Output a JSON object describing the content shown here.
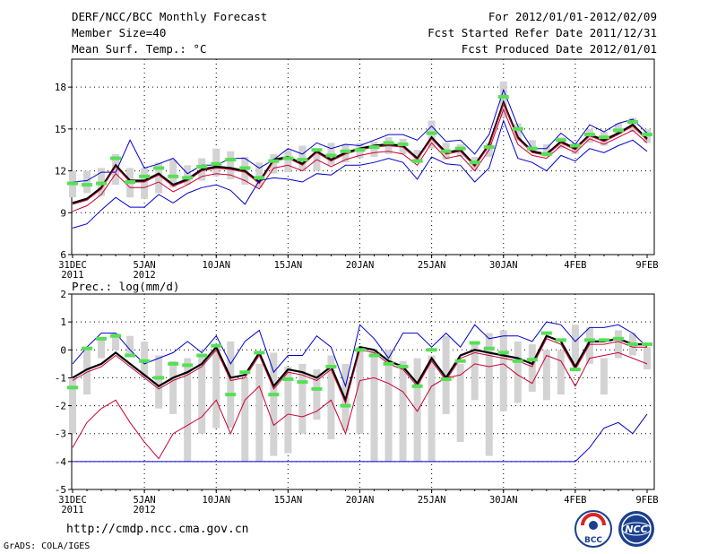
{
  "header": {
    "title_line1": "DERF/NCC/BCC Monthly Forecast",
    "title_line2": "Member Size=40",
    "title_line3": "Mean Surf. Temp.: °C",
    "right_line1": "For 2012/01/01-2012/02/09",
    "right_line2": "Fcst Started Refer Date 2011/12/31",
    "right_line3": "Fcst Produced Date 2012/01/01"
  },
  "footer": {
    "url": "http://cmdp.ncc.cma.gov.cn",
    "credit": "GrADS: COLA/IGES",
    "logo_bcc": "BCC",
    "logo_ncc": "NCC"
  },
  "colors": {
    "ensemble_bar": "#d3d3d3",
    "observed": "#55e055",
    "mean": "#000000",
    "upper": "#0000cc",
    "lower": "#cc0033",
    "grid": "#000000"
  },
  "chart_data": [
    {
      "type": "line",
      "title": "Mean Surf. Temp.: °C",
      "ylim": [
        6,
        20
      ],
      "yticks": [
        6,
        9,
        12,
        15,
        18
      ],
      "xlim": [
        0,
        40
      ],
      "xticks": [
        {
          "x": 0,
          "label": "31DEC",
          "sub": "2011"
        },
        {
          "x": 5,
          "label": "5JAN",
          "sub": "2012"
        },
        {
          "x": 10,
          "label": "10JAN",
          "sub": ""
        },
        {
          "x": 15,
          "label": "15JAN",
          "sub": ""
        },
        {
          "x": 20,
          "label": "20JAN",
          "sub": ""
        },
        {
          "x": 25,
          "label": "25JAN",
          "sub": ""
        },
        {
          "x": 30,
          "label": "30JAN",
          "sub": ""
        },
        {
          "x": 35,
          "label": "4FEB",
          "sub": ""
        },
        {
          "x": 40,
          "label": "9FEB",
          "sub": ""
        }
      ],
      "bars_low": [
        10.1,
        10.4,
        10.2,
        11.0,
        10.1,
        10.0,
        10.4,
        10.8,
        11.0,
        11.3,
        11.6,
        11.4,
        11.0,
        10.8,
        11.8,
        11.9,
        12.0,
        12.0,
        12.4,
        12.6,
        12.9,
        13.0,
        13.2,
        13.2,
        12.6,
        13.6,
        12.8,
        13.0,
        12.0,
        13.0,
        15.8,
        14.2,
        13.4,
        13.0,
        13.6,
        13.2,
        14.0,
        13.8,
        14.6,
        14.8,
        14.0
      ],
      "bars_high": [
        12.0,
        12.0,
        12.2,
        13.2,
        12.2,
        12.2,
        12.6,
        12.8,
        12.4,
        12.9,
        13.6,
        13.4,
        13.0,
        12.6,
        13.2,
        13.5,
        13.8,
        13.6,
        14.0,
        13.9,
        14.0,
        14.1,
        14.4,
        14.3,
        13.5,
        15.6,
        14.0,
        13.9,
        13.0,
        14.0,
        18.4,
        15.4,
        14.2,
        13.9,
        14.4,
        14.0,
        15.0,
        14.8,
        15.4,
        15.8,
        15.0
      ],
      "series": [
        {
          "name": "observed",
          "style": "dash",
          "values": [
            11.1,
            11.0,
            11.1,
            12.9,
            11.2,
            11.6,
            12.2,
            11.6,
            11.5,
            12.3,
            12.5,
            12.8,
            12.2,
            11.5,
            12.7,
            12.9,
            12.8,
            13.5,
            13.1,
            13.4,
            13.5,
            13.7,
            14.0,
            13.9,
            12.7,
            14.7,
            13.4,
            13.6,
            12.6,
            13.7,
            17.3,
            15.0,
            13.6,
            13.2,
            14.2,
            13.8,
            14.6,
            14.4,
            14.9,
            15.5,
            14.6
          ]
        },
        {
          "name": "upper",
          "color_key": "upper",
          "values": [
            11.2,
            11.3,
            11.9,
            11.9,
            14.2,
            12.2,
            12.5,
            12.9,
            11.8,
            12.4,
            12.4,
            12.9,
            12.9,
            12.2,
            12.8,
            13.6,
            13.2,
            14.0,
            13.6,
            13.9,
            13.8,
            14.2,
            14.6,
            14.6,
            14.2,
            15.2,
            14.1,
            14.2,
            13.2,
            14.6,
            17.8,
            15.2,
            13.6,
            13.6,
            14.7,
            13.9,
            15.3,
            14.8,
            15.4,
            15.7,
            14.7
          ]
        },
        {
          "name": "mean_outline",
          "color_key": "mean",
          "values": [
            9.7,
            10.0,
            10.8,
            12.4,
            11.3,
            11.3,
            11.8,
            11.0,
            11.4,
            12.1,
            12.3,
            12.2,
            12.0,
            11.2,
            12.8,
            13.0,
            12.5,
            13.4,
            12.8,
            13.3,
            13.6,
            13.8,
            13.9,
            13.8,
            12.9,
            14.4,
            13.3,
            13.5,
            12.4,
            13.9,
            16.9,
            14.4,
            13.4,
            13.2,
            14.1,
            13.6,
            14.6,
            14.2,
            14.7,
            15.3,
            14.3
          ]
        },
        {
          "name": "mean",
          "color_key": "lower",
          "values": [
            9.6,
            9.9,
            10.7,
            12.3,
            11.2,
            11.2,
            11.7,
            10.9,
            11.3,
            12.0,
            12.2,
            12.1,
            11.9,
            11.1,
            12.7,
            12.9,
            12.4,
            13.3,
            12.7,
            13.2,
            13.5,
            13.7,
            13.8,
            13.7,
            12.8,
            14.3,
            13.2,
            13.4,
            12.3,
            13.8,
            16.8,
            14.3,
            13.3,
            13.1,
            14.0,
            13.5,
            14.5,
            14.1,
            14.6,
            15.2,
            14.2
          ]
        },
        {
          "name": "lower",
          "color_key": "lower",
          "values": [
            9.1,
            9.5,
            10.3,
            11.8,
            10.8,
            10.8,
            11.2,
            10.5,
            11.0,
            11.6,
            11.8,
            11.7,
            11.3,
            10.7,
            12.2,
            12.4,
            12.0,
            12.8,
            12.3,
            12.8,
            13.1,
            13.3,
            13.4,
            13.2,
            12.4,
            14.0,
            12.9,
            13.1,
            12.0,
            13.5,
            16.4,
            13.9,
            13.1,
            12.9,
            13.8,
            13.3,
            14.3,
            13.9,
            14.4,
            14.9,
            14.0
          ]
        },
        {
          "name": "lower_extreme",
          "color_key": "upper",
          "values": [
            7.9,
            8.2,
            9.2,
            10.1,
            9.4,
            9.4,
            10.3,
            9.7,
            10.4,
            10.8,
            11.0,
            10.6,
            9.6,
            11.3,
            11.5,
            11.4,
            11.2,
            11.8,
            11.7,
            12.4,
            12.4,
            12.6,
            12.9,
            12.6,
            11.4,
            13.0,
            12.5,
            12.4,
            11.2,
            12.2,
            15.6,
            12.9,
            12.6,
            12.0,
            13.1,
            12.7,
            13.6,
            13.3,
            13.8,
            14.2,
            13.4
          ]
        }
      ]
    },
    {
      "type": "line",
      "title": "Prec.: log(mm/d)",
      "ylim": [
        -5,
        2
      ],
      "yticks": [
        -5,
        -4,
        -3,
        -2,
        -1,
        0,
        1,
        2
      ],
      "xlim": [
        0,
        40
      ],
      "xticks": [
        {
          "x": 0,
          "label": "31DEC",
          "sub": "2011"
        },
        {
          "x": 5,
          "label": "5JAN",
          "sub": "2012"
        },
        {
          "x": 10,
          "label": "10JAN",
          "sub": ""
        },
        {
          "x": 15,
          "label": "15JAN",
          "sub": ""
        },
        {
          "x": 20,
          "label": "20JAN",
          "sub": ""
        },
        {
          "x": 25,
          "label": "25JAN",
          "sub": ""
        },
        {
          "x": 30,
          "label": "30JAN",
          "sub": ""
        },
        {
          "x": 35,
          "label": "4FEB",
          "sub": ""
        },
        {
          "x": 40,
          "label": "9FEB",
          "sub": ""
        }
      ],
      "bars_low": [
        -3.0,
        -1.6,
        -0.3,
        0.0,
        -0.2,
        -1.0,
        -2.1,
        -2.3,
        -4.0,
        -3.0,
        -2.8,
        -2.8,
        -4.0,
        -4.0,
        -3.8,
        -3.7,
        -3.0,
        -2.5,
        -3.2,
        -2.9,
        -3.0,
        -4.0,
        -4.0,
        -4.0,
        -4.0,
        -4.0,
        -2.3,
        -3.3,
        -1.8,
        -3.8,
        -2.2,
        -1.9,
        -1.5,
        -1.8,
        -1.6,
        -0.6,
        -0.5,
        -1.6,
        -0.3,
        -0.2,
        -0.7
      ],
      "bars_high": [
        -1.0,
        0.0,
        0.4,
        0.6,
        0.5,
        0.3,
        -0.2,
        -0.4,
        -0.3,
        -0.2,
        0.2,
        0.3,
        -1.0,
        -0.5,
        -0.1,
        -0.6,
        -0.5,
        -0.7,
        -0.2,
        -0.5,
        0.1,
        0.0,
        0.0,
        -0.4,
        -0.3,
        -0.2,
        0.5,
        -0.5,
        0.3,
        0.6,
        0.7,
        0.3,
        0.2,
        0.0,
        0.0,
        0.9,
        0.8,
        -0.3,
        0.7,
        0.6,
        0.1
      ],
      "series": [
        {
          "name": "observed",
          "style": "dash",
          "values": [
            -1.35,
            0.05,
            0.4,
            0.5,
            -0.2,
            -0.4,
            -1.0,
            -0.5,
            -0.55,
            -0.2,
            0.15,
            -1.6,
            -0.8,
            -0.1,
            -1.6,
            -1.05,
            -1.15,
            -1.4,
            -0.6,
            -2.0,
            0.0,
            -0.2,
            -0.5,
            -0.6,
            -1.3,
            0.0,
            -1.05,
            -0.4,
            0.25,
            0.05,
            -0.1,
            -0.4,
            -0.35,
            0.6,
            0.35,
            -0.7,
            0.35,
            0.35,
            0.4,
            0.2,
            0.2
          ]
        },
        {
          "name": "upper",
          "color_key": "upper",
          "values": [
            -0.5,
            0.1,
            0.6,
            0.6,
            0.0,
            -0.5,
            -0.3,
            -0.1,
            0.3,
            -0.1,
            0.5,
            -0.5,
            0.3,
            0.7,
            -0.8,
            -0.2,
            -0.2,
            0.5,
            0.1,
            -1.3,
            0.9,
            0.4,
            -0.3,
            0.6,
            0.6,
            0.1,
            0.6,
            0.1,
            0.9,
            0.4,
            0.5,
            0.5,
            0.3,
            1.0,
            0.9,
            0.3,
            0.8,
            0.8,
            0.9,
            0.6,
            0.1
          ]
        },
        {
          "name": "mean_outline",
          "color_key": "mean",
          "values": [
            -1.0,
            -0.7,
            -0.5,
            -0.1,
            -0.5,
            -0.9,
            -1.3,
            -1.0,
            -0.8,
            -0.5,
            0.1,
            -1.0,
            -0.9,
            -0.1,
            -1.3,
            -0.7,
            -0.8,
            -1.0,
            -0.6,
            -1.8,
            0.1,
            0.0,
            -0.4,
            -0.6,
            -1.2,
            -0.3,
            -1.0,
            -0.2,
            0.0,
            -0.1,
            -0.2,
            -0.3,
            -0.5,
            0.5,
            0.3,
            -0.6,
            0.3,
            0.3,
            0.4,
            0.2,
            0.2
          ]
        },
        {
          "name": "mean",
          "color_key": "lower",
          "values": [
            -1.1,
            -0.8,
            -0.6,
            -0.2,
            -0.6,
            -1.0,
            -1.4,
            -1.1,
            -0.9,
            -0.6,
            0.0,
            -1.1,
            -1.0,
            -0.2,
            -1.4,
            -0.8,
            -0.9,
            -1.1,
            -0.7,
            -1.9,
            0.0,
            -0.1,
            -0.5,
            -0.7,
            -1.3,
            -0.4,
            -1.1,
            -0.3,
            -0.1,
            -0.2,
            -0.3,
            -0.4,
            -0.6,
            0.4,
            0.2,
            -0.7,
            0.2,
            0.2,
            0.3,
            0.1,
            0.1
          ]
        },
        {
          "name": "lower",
          "color_key": "lower",
          "values": [
            -3.5,
            -2.6,
            -2.1,
            -1.8,
            -2.6,
            -3.3,
            -3.9,
            -3.0,
            -2.7,
            -2.4,
            -1.8,
            -3.0,
            -1.8,
            -1.3,
            -2.7,
            -2.3,
            -2.4,
            -2.2,
            -1.8,
            -3.0,
            -1.1,
            -1.0,
            -1.2,
            -1.5,
            -2.2,
            -1.3,
            -1.0,
            -0.9,
            -0.5,
            -0.6,
            -0.5,
            -0.9,
            -1.2,
            -0.2,
            -0.4,
            -1.3,
            -0.3,
            -0.2,
            -0.1,
            -0.3,
            -0.5
          ]
        },
        {
          "name": "lower_extreme",
          "color_key": "upper",
          "values": [
            -4.0,
            -4.0,
            -4.0,
            -4.0,
            -4.0,
            -4.0,
            -4.0,
            -4.0,
            -4.0,
            -4.0,
            -4.0,
            -4.0,
            -4.0,
            -4.0,
            -4.0,
            -4.0,
            -4.0,
            -4.0,
            -4.0,
            -4.0,
            -4.0,
            -4.0,
            -4.0,
            -4.0,
            -4.0,
            -4.0,
            -4.0,
            -4.0,
            -4.0,
            -4.0,
            -4.0,
            -4.0,
            -4.0,
            -4.0,
            -4.0,
            -4.0,
            -3.5,
            -2.8,
            -2.6,
            -3.0,
            -2.3
          ]
        }
      ]
    }
  ]
}
